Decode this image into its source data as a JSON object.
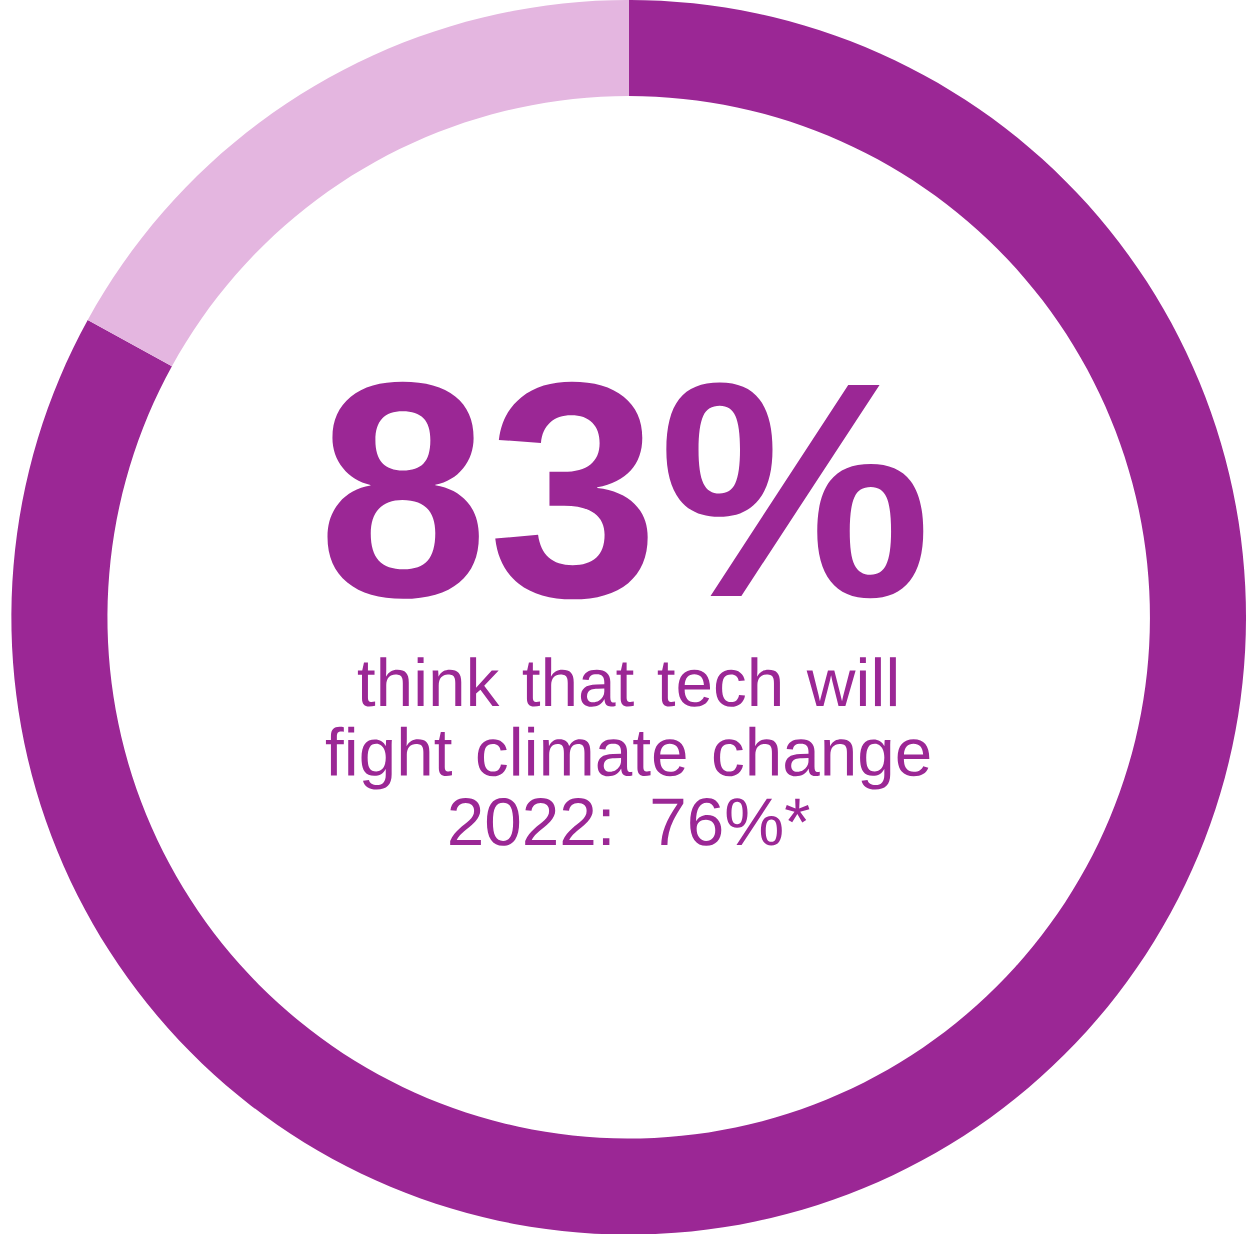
{
  "chart_data": {
    "type": "donut",
    "categories": [
      null,
      null
    ],
    "values": [
      83,
      17
    ],
    "colors": [
      "#9b2795",
      "#e4b6e0"
    ],
    "value_labels": [
      "83%",
      null
    ],
    "annotations": [
      "think that tech will fight climate change",
      "2022: 76%*"
    ]
  }
}
